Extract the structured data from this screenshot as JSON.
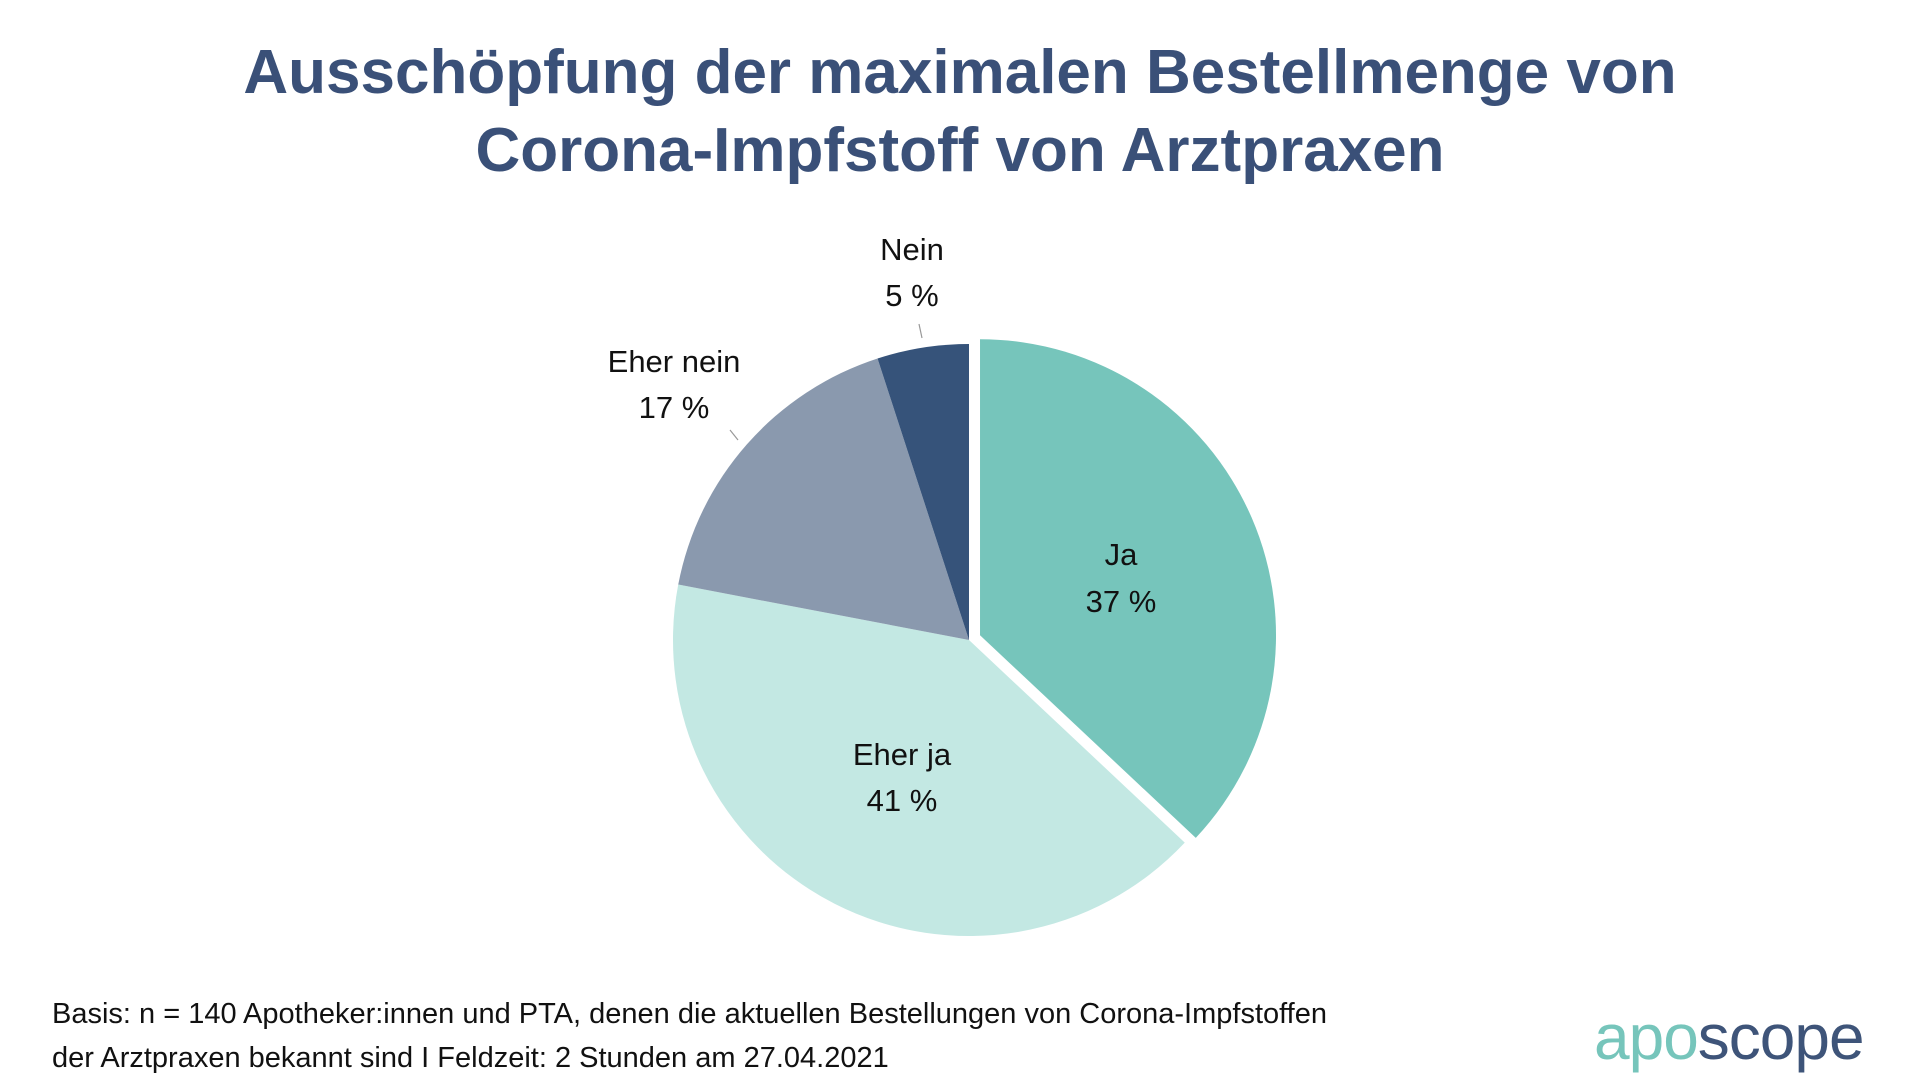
{
  "title": {
    "line1": "Ausschöpfung der maximalen Bestellmenge von",
    "line2": "Corona-Impfstoff von Arztpraxen"
  },
  "chart_data": {
    "type": "pie",
    "title": "Ausschöpfung der maximalen Bestellmenge von Corona-Impfstoff von Arztpraxen",
    "slices": [
      {
        "label": "Ja",
        "value": 37,
        "value_label": "37 %",
        "color": "#76c5bb",
        "exploded": true
      },
      {
        "label": "Eher ja",
        "value": 41,
        "value_label": "41 %",
        "color": "#c3e8e3",
        "exploded": false
      },
      {
        "label": "Eher nein",
        "value": 17,
        "value_label": "17 %",
        "color": "#8a99ae",
        "exploded": false
      },
      {
        "label": "Nein",
        "value": 5,
        "value_label": "5 %",
        "color": "#36537a",
        "exploded": false
      }
    ],
    "start": "top",
    "direction": "clockwise"
  },
  "footer": {
    "line1": "Basis: n = 140 Apotheker:innen und PTA, denen die aktuellen Bestellungen von Corona-Impfstoffen",
    "line2": "der Arztpraxen bekannt sind I Feldzeit: 2 Stunden am 27.04.2021"
  },
  "logo": {
    "part1": "apo",
    "part2": "scope"
  }
}
